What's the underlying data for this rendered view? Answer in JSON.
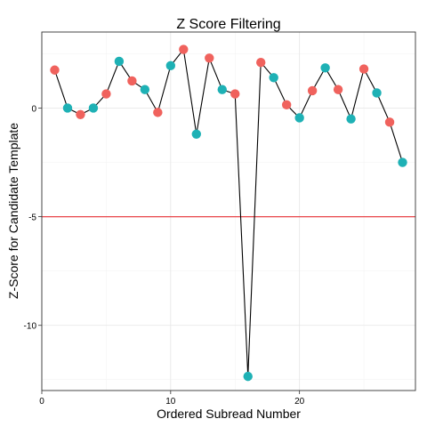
{
  "chart_data": {
    "type": "line",
    "title": "Z Score Filtering",
    "xlabel": "Ordered Subread Number",
    "ylabel": "Z-Score for Candidate Template",
    "xlim": [
      0,
      29
    ],
    "ylim": [
      -13,
      3.5
    ],
    "x_ticks": [
      0,
      10,
      20
    ],
    "x_tick_labels": [
      "0",
      "10",
      "20"
    ],
    "y_ticks": [
      0,
      -5,
      -10
    ],
    "y_tick_labels": [
      "0",
      "-5",
      "-10"
    ],
    "grid": true,
    "legend": "none",
    "threshold": {
      "value": -5,
      "color": "#e8474a"
    },
    "series": [
      {
        "x": [
          1,
          2,
          3,
          4,
          5,
          6,
          7,
          8,
          9,
          10,
          11,
          12,
          13,
          14,
          15,
          16,
          17,
          18,
          19,
          20,
          21,
          22,
          23,
          24,
          25,
          26,
          27,
          28
        ],
        "values": [
          1.75,
          0.0,
          -0.3,
          0.0,
          0.65,
          2.15,
          1.25,
          0.85,
          -0.2,
          1.95,
          2.7,
          -1.2,
          2.3,
          0.85,
          0.65,
          -12.35,
          2.1,
          1.4,
          0.15,
          -0.45,
          0.8,
          1.85,
          0.85,
          -0.5,
          1.8,
          0.7,
          -0.65,
          -2.5
        ],
        "group": [
          "a",
          "b",
          "a",
          "b",
          "a",
          "b",
          "a",
          "b",
          "a",
          "b",
          "a",
          "b",
          "a",
          "b",
          "a",
          "b",
          "a",
          "b",
          "a",
          "b",
          "a",
          "b",
          "a",
          "b",
          "a",
          "b",
          "a",
          "b"
        ]
      }
    ],
    "colors": {
      "a": "#f0625d",
      "b": "#1eb1b5",
      "line": "#000000"
    }
  }
}
